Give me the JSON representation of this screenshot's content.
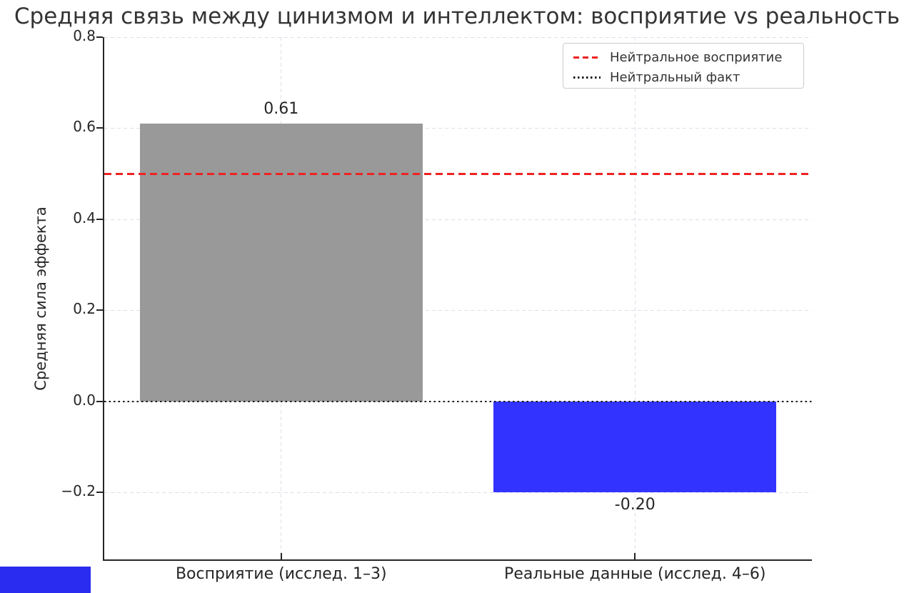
{
  "chart_data": {
    "type": "bar",
    "title": "Средняя связь между цинизмом и интеллектом: восприятие vs реальность",
    "ylabel": "Средняя сила эффекта",
    "categories": [
      "Восприятие (исслед. 1–3)",
      "Реальные данные (исслед. 4–6)"
    ],
    "values": [
      0.61,
      -0.2
    ],
    "bar_value_labels": [
      "0.61",
      "-0.20"
    ],
    "bar_names": [
      "perception-bar",
      "reality-bar"
    ],
    "bar_colors": [
      "#999999",
      "#3333ff"
    ],
    "ylim": [
      -0.35,
      0.8
    ],
    "yticks": [
      0.8,
      0.6,
      0.4,
      0.2,
      0.0,
      -0.2
    ],
    "ytick_labels": [
      "0.8",
      "0.6",
      "0.4",
      "0.2",
      "0.0",
      "−0.2"
    ],
    "grid": true,
    "gridline_color": "#dedeea",
    "legend_position": "upper right",
    "reference_lines": [
      {
        "value": 0.5,
        "style": "dashed",
        "color": "#ee2222",
        "label": "Нейтральное восприятие"
      },
      {
        "value": 0.0,
        "style": "dotted",
        "color": "#1a1a1a",
        "label": "Нейтральный факт"
      }
    ]
  },
  "legend": {
    "items": [
      {
        "label": "Нейтральное восприятие",
        "swatch": "dashed-line",
        "color": "#ee2222"
      },
      {
        "label": "Нейтральный факт",
        "swatch": "dotted-line",
        "color": "#1a1a1a"
      }
    ]
  },
  "misc": {
    "blue_fragment_color": "#2a2cf0"
  }
}
